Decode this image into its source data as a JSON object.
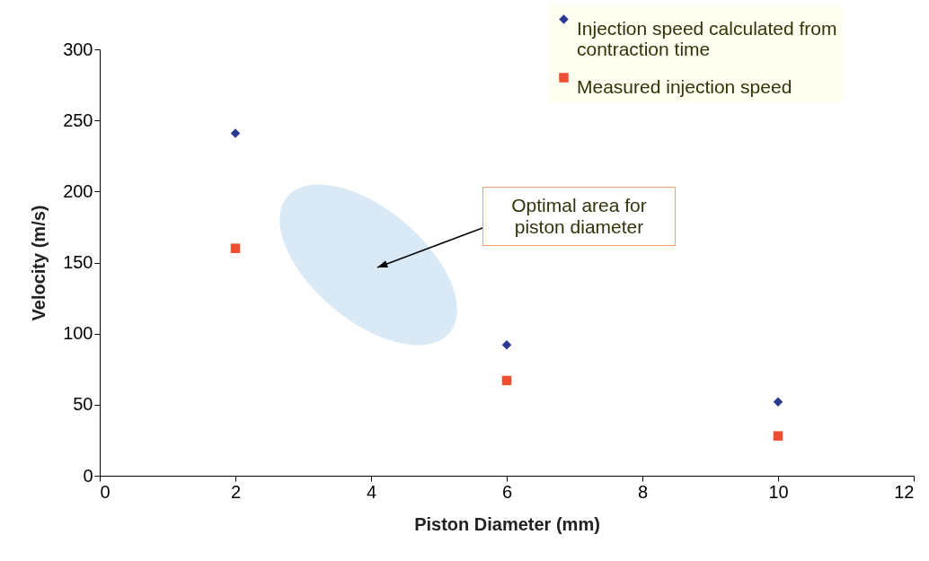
{
  "chart_data": {
    "type": "scatter",
    "xlabel": "Piston Diameter (mm)",
    "ylabel": "Velocity (m/s)",
    "x": [
      2,
      6,
      10
    ],
    "series": [
      {
        "name": "Injection speed calculated from contraction time",
        "color": "#2b3990",
        "marker": "diamond",
        "values": [
          241,
          92,
          52
        ]
      },
      {
        "name": "Measured injection speed",
        "color": "#f04e30",
        "marker": "square",
        "values": [
          160,
          67,
          28
        ]
      }
    ],
    "xlim": [
      0,
      12
    ],
    "xticks": [
      0,
      2,
      4,
      6,
      8,
      10,
      12
    ],
    "ylim": [
      0,
      300
    ],
    "yticks": [
      0,
      50,
      100,
      150,
      200,
      250,
      300
    ],
    "grid": false,
    "legend": "top right",
    "annotations": [
      "Optimal area for piston diameter"
    ]
  }
}
